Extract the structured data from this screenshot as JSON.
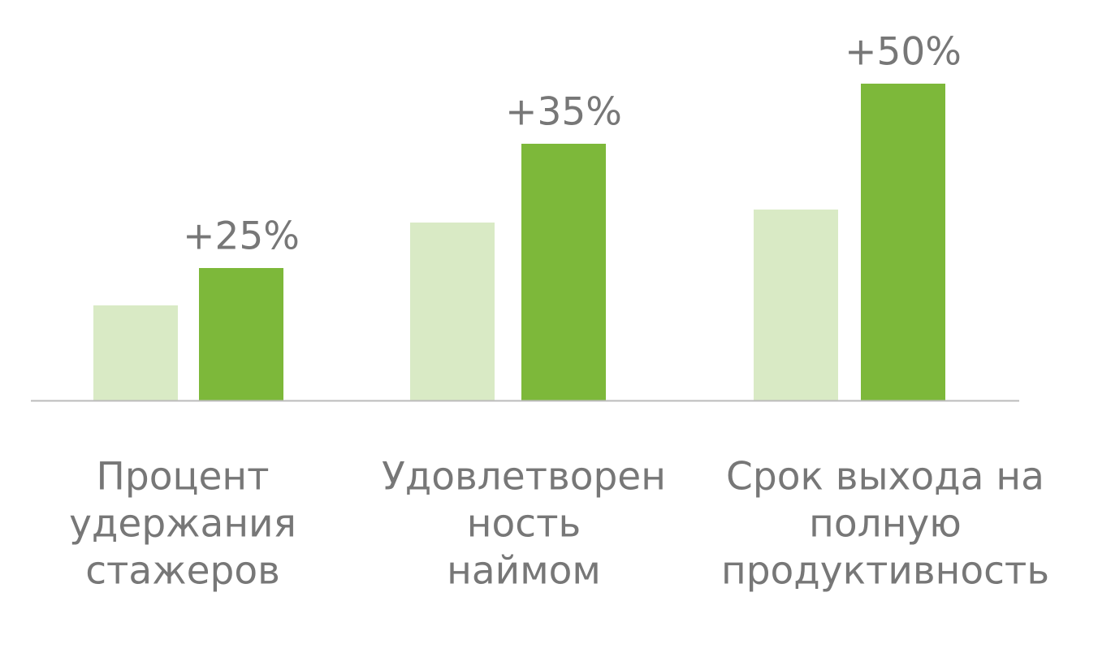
{
  "chart_data": {
    "type": "bar",
    "categories": [
      [
        "Процент",
        "удержания",
        "стажеров"
      ],
      [
        "Удовлетворен",
        "ность",
        "наймом"
      ],
      [
        "Срок выхода на",
        "полную",
        "продуктивность"
      ]
    ],
    "series": [
      {
        "color": "#d9eac5",
        "values": [
          117,
          219,
          235
        ]
      },
      {
        "color": "#7db83a",
        "values": [
          163,
          316,
          390
        ]
      }
    ],
    "annotations": [
      "+25%",
      "+35%",
      "+50%"
    ],
    "ylim": [
      0,
      400
    ]
  }
}
